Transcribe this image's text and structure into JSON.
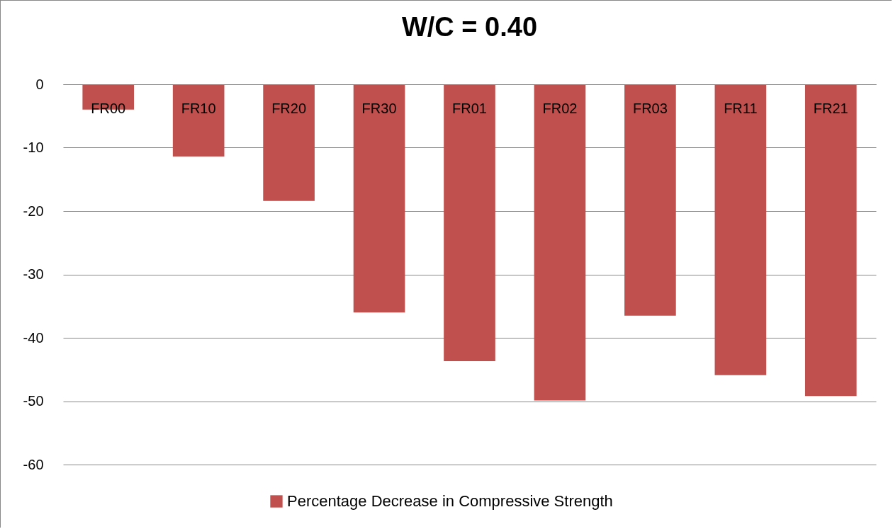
{
  "chart_data": {
    "type": "bar",
    "title": "W/C = 0.40",
    "categories": [
      "FR00",
      "FR10",
      "FR20",
      "FR30",
      "FR01",
      "FR02",
      "FR03",
      "FR11",
      "FR21"
    ],
    "series": [
      {
        "name": "Percentage Decrease in Compressive Strength",
        "color": "#c0504d",
        "values": [
          -4.0,
          -11.4,
          -18.4,
          -36.0,
          -43.7,
          -49.9,
          -36.5,
          -45.9,
          -49.2
        ]
      }
    ],
    "ylim": [
      -60,
      0
    ],
    "yticks": [
      -60,
      -50,
      -40,
      -30,
      -20,
      -10,
      0
    ],
    "grid": "y",
    "legend": "bottom"
  }
}
